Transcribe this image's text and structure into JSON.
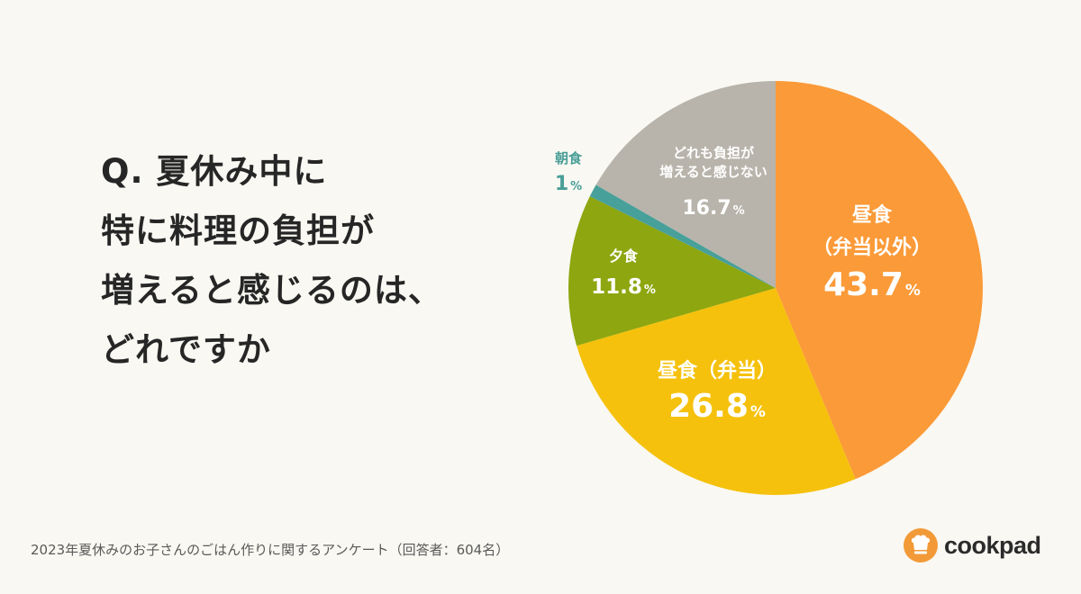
{
  "question": {
    "lines": [
      "Q. 夏休み中に",
      "特に料理の負担が",
      "増えると感じるのは、",
      "どれですか"
    ]
  },
  "chart_data": {
    "type": "pie",
    "slices": [
      {
        "label_lines": [
          "昼食",
          "（弁当以外）"
        ],
        "value": 43.7,
        "display": "43.7",
        "color": "#fb9a38"
      },
      {
        "label_lines": [
          "昼食（弁当）"
        ],
        "value": 26.8,
        "display": "26.8",
        "color": "#f5c10c"
      },
      {
        "label_lines": [
          "夕食"
        ],
        "value": 11.8,
        "display": "11.8",
        "color": "#8ea60f"
      },
      {
        "label_lines": [
          "朝食"
        ],
        "value": 1,
        "display": "1",
        "color": "#48a09a"
      },
      {
        "label_lines": [
          "どれも負担が",
          "増えると感じない"
        ],
        "value": 16.7,
        "display": "16.7",
        "color": "#b8b4ab"
      }
    ],
    "unit": "%"
  },
  "footnote": "2023年夏休みのお子さんのごはん作りに関するアンケート（回答者：604名）",
  "brand": {
    "name": "cookpad",
    "color": "#f29a38",
    "logo_icon": "chef-hat-icon"
  }
}
